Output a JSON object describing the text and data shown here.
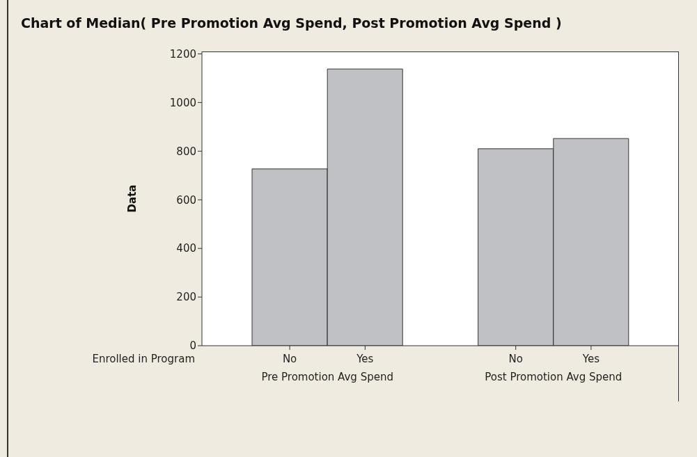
{
  "chart_data": {
    "type": "bar",
    "title": "Chart of Median( Pre Promotion Avg Spend, Post Promotion Avg Spend )",
    "xlabel": "Enrolled in Program",
    "ylabel": "Data",
    "categories": [
      "No",
      "Yes",
      "No",
      "Yes"
    ],
    "values": [
      727,
      1138,
      810,
      852
    ],
    "color": "#c0c1c5",
    "annotations": [
      "Pre Promotion Avg Spend",
      "Post Promotion Avg Spend"
    ],
    "ylim": [
      0,
      1210
    ],
    "yticks": [
      0,
      200,
      400,
      600,
      800,
      1000,
      1200
    ]
  }
}
